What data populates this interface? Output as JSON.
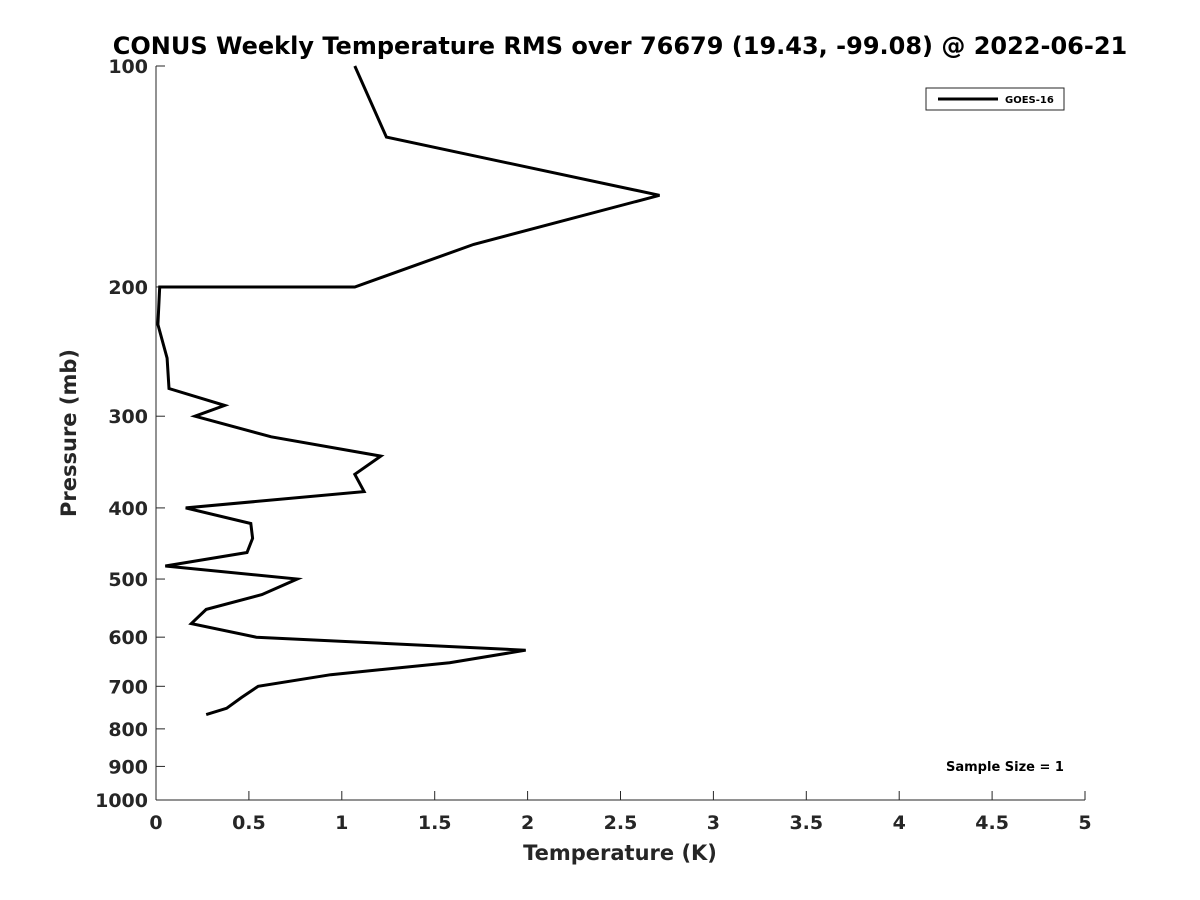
{
  "chart_data": {
    "type": "line",
    "title": "CONUS Weekly Temperature RMS over 76679 (19.43, -99.08) @ 2022-06-21",
    "xlabel": "Temperature (K)",
    "ylabel": "Pressure (mb)",
    "xlim": [
      0,
      5
    ],
    "ylim": [
      100,
      1000
    ],
    "y_scale": "log",
    "y_reversed": true,
    "x_ticks": [
      "0",
      "0.5",
      "1",
      "1.5",
      "2",
      "2.5",
      "3",
      "3.5",
      "4",
      "4.5",
      "5"
    ],
    "y_ticks": [
      "100",
      "200",
      "300",
      "400",
      "500",
      "600",
      "700",
      "800",
      "900",
      "1000"
    ],
    "grid": false,
    "legend_position": "top-right",
    "series": [
      {
        "name": "GOES-16",
        "color": "#000000",
        "points": [
          {
            "x": 1.07,
            "p": 100
          },
          {
            "x": 1.24,
            "p": 125
          },
          {
            "x": 2.71,
            "p": 150
          },
          {
            "x": 1.71,
            "p": 175
          },
          {
            "x": 1.07,
            "p": 200
          },
          {
            "x": 0.02,
            "p": 200
          },
          {
            "x": 0.01,
            "p": 225
          },
          {
            "x": 0.06,
            "p": 250
          },
          {
            "x": 0.07,
            "p": 275
          },
          {
            "x": 0.37,
            "p": 290
          },
          {
            "x": 0.21,
            "p": 300
          },
          {
            "x": 0.62,
            "p": 320
          },
          {
            "x": 1.21,
            "p": 340
          },
          {
            "x": 1.07,
            "p": 360
          },
          {
            "x": 1.12,
            "p": 380
          },
          {
            "x": 0.16,
            "p": 400
          },
          {
            "x": 0.51,
            "p": 420
          },
          {
            "x": 0.52,
            "p": 440
          },
          {
            "x": 0.49,
            "p": 460
          },
          {
            "x": 0.05,
            "p": 480
          },
          {
            "x": 0.76,
            "p": 500
          },
          {
            "x": 0.57,
            "p": 525
          },
          {
            "x": 0.27,
            "p": 550
          },
          {
            "x": 0.19,
            "p": 575
          },
          {
            "x": 0.54,
            "p": 600
          },
          {
            "x": 1.99,
            "p": 625
          },
          {
            "x": 1.58,
            "p": 650
          },
          {
            "x": 0.94,
            "p": 675
          },
          {
            "x": 0.55,
            "p": 700
          },
          {
            "x": 0.46,
            "p": 725
          },
          {
            "x": 0.38,
            "p": 750
          },
          {
            "x": 0.27,
            "p": 765
          }
        ]
      }
    ],
    "annotation": "Sample Size = 1"
  }
}
